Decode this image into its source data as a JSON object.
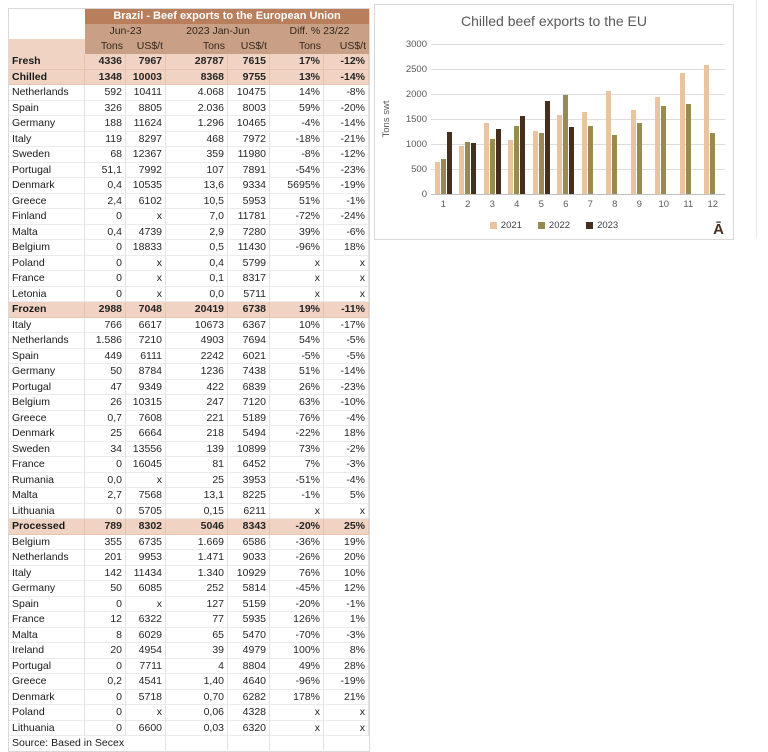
{
  "table": {
    "title": "Brazil - Beef exports to the European Union",
    "col_groups": [
      "Jun-23",
      "2023 Jan-Jun",
      "Diff. % 23/22"
    ],
    "sub_headers": [
      "Tons",
      "US$/t",
      "Tons",
      "US$/t",
      "Tons",
      "US$/t"
    ],
    "source": "Source: Based in Secex",
    "colors": {
      "title_bg": "#b97e5c",
      "header_bg": "#c9a085",
      "category_bg": "#f0d3c2"
    },
    "rows": [
      {
        "label": "Fresh",
        "category": true,
        "values": [
          "4336",
          "7967",
          "28787",
          "7615",
          "17%",
          "-12%"
        ]
      },
      {
        "label": "Chilled",
        "category": true,
        "values": [
          "1348",
          "10003",
          "8368",
          "9755",
          "13%",
          "-14%"
        ]
      },
      {
        "label": "Netherlands",
        "category": false,
        "values": [
          "592",
          "10411",
          "4.068",
          "10475",
          "14%",
          "-8%"
        ]
      },
      {
        "label": "Spain",
        "category": false,
        "values": [
          "326",
          "8805",
          "2.036",
          "8003",
          "59%",
          "-20%"
        ]
      },
      {
        "label": "Germany",
        "category": false,
        "values": [
          "188",
          "11624",
          "1.296",
          "10465",
          "-4%",
          "-14%"
        ]
      },
      {
        "label": "Italy",
        "category": false,
        "values": [
          "119",
          "8297",
          "468",
          "7972",
          "-18%",
          "-21%"
        ]
      },
      {
        "label": "Sweden",
        "category": false,
        "values": [
          "68",
          "12367",
          "359",
          "11980",
          "-8%",
          "-12%"
        ]
      },
      {
        "label": "Portugal",
        "category": false,
        "values": [
          "51,1",
          "7992",
          "107",
          "7891",
          "-54%",
          "-23%"
        ]
      },
      {
        "label": "Denmark",
        "category": false,
        "values": [
          "0,4",
          "10535",
          "13,6",
          "9334",
          "5695%",
          "-19%"
        ]
      },
      {
        "label": "Greece",
        "category": false,
        "values": [
          "2,4",
          "6102",
          "10,5",
          "5953",
          "51%",
          "-1%"
        ]
      },
      {
        "label": "Finland",
        "category": false,
        "values": [
          "0",
          "x",
          "7,0",
          "11781",
          "-72%",
          "-24%"
        ]
      },
      {
        "label": "Malta",
        "category": false,
        "values": [
          "0,4",
          "4739",
          "2,9",
          "7280",
          "39%",
          "-6%"
        ]
      },
      {
        "label": "Belgium",
        "category": false,
        "values": [
          "0",
          "18833",
          "0,5",
          "11430",
          "-96%",
          "18%"
        ]
      },
      {
        "label": "Poland",
        "category": false,
        "values": [
          "0",
          "x",
          "0,4",
          "5799",
          "x",
          "x"
        ]
      },
      {
        "label": "France",
        "category": false,
        "values": [
          "0",
          "x",
          "0,1",
          "8317",
          "x",
          "x"
        ]
      },
      {
        "label": "Letonia",
        "category": false,
        "values": [
          "0",
          "x",
          "0,0",
          "5711",
          "x",
          "x"
        ]
      },
      {
        "label": "Frozen",
        "category": true,
        "values": [
          "2988",
          "7048",
          "20419",
          "6738",
          "19%",
          "-11%"
        ]
      },
      {
        "label": "Italy",
        "category": false,
        "values": [
          "766",
          "6617",
          "10673",
          "6367",
          "10%",
          "-17%"
        ]
      },
      {
        "label": "Netherlands",
        "category": false,
        "values": [
          "1.586",
          "7210",
          "4903",
          "7694",
          "54%",
          "-5%"
        ]
      },
      {
        "label": "Spain",
        "category": false,
        "values": [
          "449",
          "6111",
          "2242",
          "6021",
          "-5%",
          "-5%"
        ]
      },
      {
        "label": "Germany",
        "category": false,
        "values": [
          "50",
          "8784",
          "1236",
          "7438",
          "51%",
          "-14%"
        ]
      },
      {
        "label": "Portugal",
        "category": false,
        "values": [
          "47",
          "9349",
          "422",
          "6839",
          "26%",
          "-23%"
        ]
      },
      {
        "label": "Belgium",
        "category": false,
        "values": [
          "26",
          "10315",
          "247",
          "7120",
          "63%",
          "-10%"
        ]
      },
      {
        "label": "Greece",
        "category": false,
        "values": [
          "0,7",
          "7608",
          "221",
          "5189",
          "76%",
          "-4%"
        ]
      },
      {
        "label": "Denmark",
        "category": false,
        "values": [
          "25",
          "6664",
          "218",
          "5494",
          "-22%",
          "18%"
        ]
      },
      {
        "label": "Sweden",
        "category": false,
        "values": [
          "34",
          "13556",
          "139",
          "10899",
          "73%",
          "-2%"
        ]
      },
      {
        "label": "France",
        "category": false,
        "values": [
          "0",
          "16045",
          "81",
          "6452",
          "7%",
          "-3%"
        ]
      },
      {
        "label": "Rumania",
        "category": false,
        "values": [
          "0,0",
          "x",
          "25",
          "3953",
          "-51%",
          "-4%"
        ]
      },
      {
        "label": "Malta",
        "category": false,
        "values": [
          "2,7",
          "7568",
          "13,1",
          "8225",
          "-1%",
          "5%"
        ]
      },
      {
        "label": "Lithuania",
        "category": false,
        "values": [
          "0",
          "5705",
          "0,15",
          "6211",
          "x",
          "x"
        ]
      },
      {
        "label": "Processed",
        "category": true,
        "values": [
          "789",
          "8302",
          "5046",
          "8343",
          "-20%",
          "25%"
        ]
      },
      {
        "label": "Belgium",
        "category": false,
        "values": [
          "355",
          "6735",
          "1.669",
          "6586",
          "-36%",
          "19%"
        ]
      },
      {
        "label": "Netherlands",
        "category": false,
        "values": [
          "201",
          "9953",
          "1.471",
          "9033",
          "-26%",
          "20%"
        ]
      },
      {
        "label": "Italy",
        "category": false,
        "values": [
          "142",
          "11434",
          "1.340",
          "10929",
          "76%",
          "10%"
        ]
      },
      {
        "label": "Germany",
        "category": false,
        "values": [
          "50",
          "6085",
          "252",
          "5814",
          "-45%",
          "12%"
        ]
      },
      {
        "label": "Spain",
        "category": false,
        "values": [
          "0",
          "x",
          "127",
          "5159",
          "-20%",
          "-1%"
        ]
      },
      {
        "label": "France",
        "category": false,
        "values": [
          "12",
          "6322",
          "77",
          "5935",
          "126%",
          "1%"
        ]
      },
      {
        "label": "Malta",
        "category": false,
        "values": [
          "8",
          "6029",
          "65",
          "5470",
          "-70%",
          "-3%"
        ]
      },
      {
        "label": "Ireland",
        "category": false,
        "values": [
          "20",
          "4954",
          "39",
          "4979",
          "100%",
          "8%"
        ]
      },
      {
        "label": "Portugal",
        "category": false,
        "values": [
          "0",
          "7711",
          "4",
          "8804",
          "49%",
          "28%"
        ]
      },
      {
        "label": "Greece",
        "category": false,
        "values": [
          "0,2",
          "4541",
          "1,40",
          "4640",
          "-96%",
          "-19%"
        ]
      },
      {
        "label": "Denmark",
        "category": false,
        "values": [
          "0",
          "5718",
          "0,70",
          "6282",
          "178%",
          "21%"
        ]
      },
      {
        "label": "Poland",
        "category": false,
        "values": [
          "0",
          "x",
          "0,06",
          "4328",
          "x",
          "x"
        ]
      },
      {
        "label": "Lithuania",
        "category": false,
        "values": [
          "0",
          "6600",
          "0,03",
          "6320",
          "x",
          "x"
        ]
      }
    ]
  },
  "chart": {
    "title": "Chilled beef exports to the EU",
    "y_axis_title": "Tons swt",
    "watermark": "Ā"
  },
  "chart_data": {
    "type": "bar",
    "title": "Chilled beef exports to the EU",
    "xlabel": "",
    "ylabel": "Tons swt",
    "categories": [
      "1",
      "2",
      "3",
      "4",
      "5",
      "6",
      "7",
      "8",
      "9",
      "10",
      "11",
      "12"
    ],
    "ylim": [
      0,
      3000
    ],
    "yticks": [
      0,
      500,
      1000,
      1500,
      2000,
      2500,
      3000
    ],
    "grid": true,
    "legend_position": "bottom",
    "series": [
      {
        "name": "2021",
        "color": "#e9c49e",
        "values": [
          650,
          960,
          1420,
          1080,
          1260,
          1580,
          1640,
          2060,
          1690,
          1950,
          2420,
          2580
        ]
      },
      {
        "name": "2022",
        "color": "#968c52",
        "values": [
          710,
          1040,
          1100,
          1360,
          1230,
          1980,
          1360,
          1180,
          1420,
          1760,
          1800,
          1220
        ]
      },
      {
        "name": "2023",
        "color": "#453020",
        "values": [
          1250,
          1020,
          1310,
          1570,
          1860,
          1348,
          null,
          null,
          null,
          null,
          null,
          null
        ]
      }
    ]
  }
}
